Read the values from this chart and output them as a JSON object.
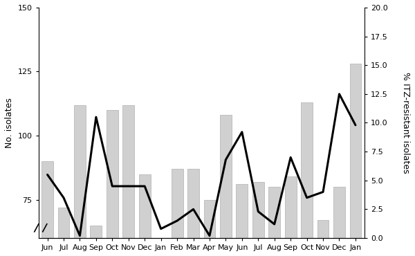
{
  "months": [
    "Jun",
    "Jul",
    "Aug",
    "Sep",
    "Oct",
    "Nov",
    "Dec",
    "Jan",
    "Feb",
    "Mar",
    "Apr",
    "May",
    "Jun",
    "Jul",
    "Aug",
    "Sep",
    "Oct",
    "Nov",
    "Dec",
    "Jan"
  ],
  "bar_values": [
    90,
    72,
    112,
    65,
    110,
    112,
    85,
    55,
    87,
    87,
    75,
    108,
    81,
    82,
    80,
    84,
    113,
    67,
    80,
    128
  ],
  "line_values": [
    5.5,
    3.5,
    0.2,
    10.5,
    4.5,
    4.5,
    4.5,
    0.8,
    1.5,
    2.5,
    0.2,
    6.8,
    9.2,
    2.3,
    1.2,
    7.0,
    3.5,
    4.0,
    12.5,
    9.8
  ],
  "bar_color": "#d0d0d0",
  "bar_edgecolor": "#b0b0b0",
  "line_color": "#000000",
  "line_width": 2.2,
  "ylabel_left": "No. isolates",
  "ylabel_right": "% ITZ-resistant isolates",
  "ylim_left": [
    60,
    150
  ],
  "ylim_right": [
    0.0,
    20.0
  ],
  "yticks_left": [
    75,
    100,
    125,
    150
  ],
  "yticks_right": [
    0.0,
    2.5,
    5.0,
    7.5,
    10.0,
    12.5,
    15.0,
    17.5,
    20.0
  ],
  "figsize": [
    6.0,
    3.7
  ],
  "dpi": 100
}
